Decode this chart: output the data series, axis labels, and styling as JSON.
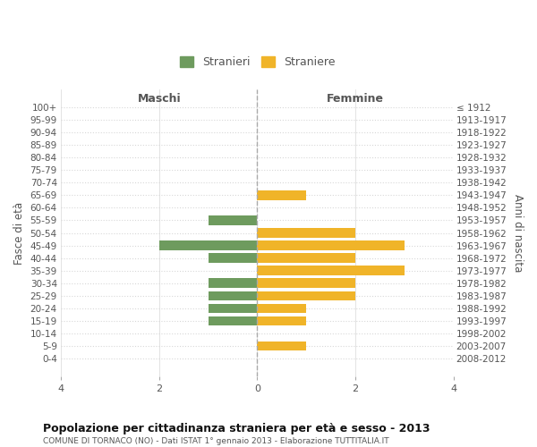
{
  "age_groups": [
    "100+",
    "95-99",
    "90-94",
    "85-89",
    "80-84",
    "75-79",
    "70-74",
    "65-69",
    "60-64",
    "55-59",
    "50-54",
    "45-49",
    "40-44",
    "35-39",
    "30-34",
    "25-29",
    "20-24",
    "15-19",
    "10-14",
    "5-9",
    "0-4"
  ],
  "birth_years": [
    "≤ 1912",
    "1913-1917",
    "1918-1922",
    "1923-1927",
    "1928-1932",
    "1933-1937",
    "1938-1942",
    "1943-1947",
    "1948-1952",
    "1953-1957",
    "1958-1962",
    "1963-1967",
    "1968-1972",
    "1973-1977",
    "1978-1982",
    "1983-1987",
    "1988-1992",
    "1993-1997",
    "1998-2002",
    "2003-2007",
    "2008-2012"
  ],
  "stranieri": [
    0,
    0,
    0,
    0,
    0,
    0,
    0,
    0,
    0,
    1,
    0,
    2,
    1,
    0,
    1,
    1,
    1,
    1,
    0,
    0,
    0
  ],
  "straniere": [
    0,
    0,
    0,
    0,
    0,
    0,
    0,
    1,
    0,
    0,
    2,
    3,
    2,
    3,
    2,
    2,
    1,
    1,
    0,
    1,
    0
  ],
  "color_stranieri": "#6e9b5e",
  "color_straniere": "#f0b429",
  "xlim": 4,
  "title": "Popolazione per cittadinanza straniera per età e sesso - 2013",
  "subtitle": "COMUNE DI TORNACO (NO) - Dati ISTAT 1° gennaio 2013 - Elaborazione TUTTITALIA.IT",
  "ylabel_left": "Fasce di età",
  "ylabel_right": "Anni di nascita",
  "legend_stranieri": "Stranieri",
  "legend_straniere": "Straniere",
  "label_maschi": "Maschi",
  "label_femmine": "Femmine",
  "background_color": "#ffffff",
  "grid_color": "#d8d8d8",
  "bar_height": 0.75
}
